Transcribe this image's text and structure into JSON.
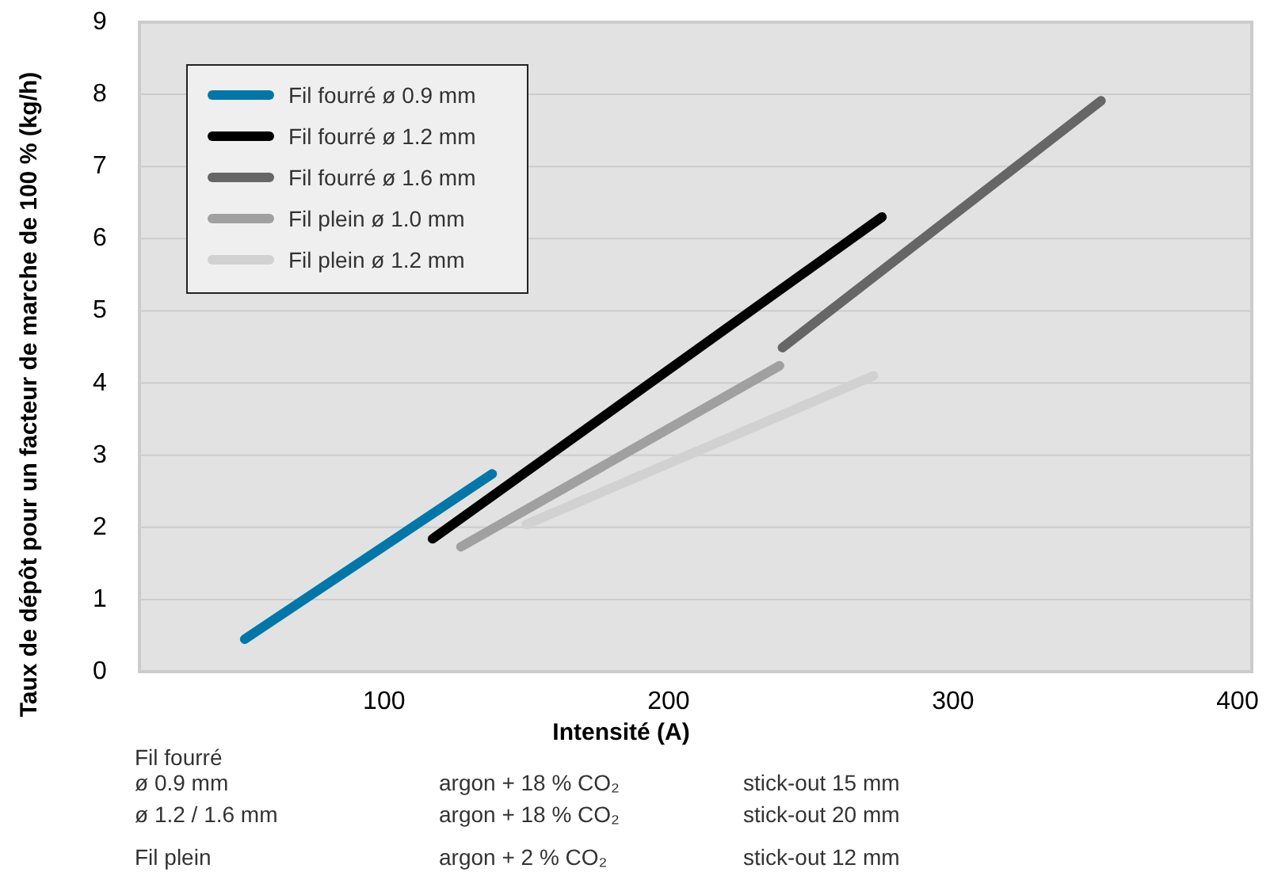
{
  "chart_data": {
    "type": "line",
    "xlabel": "Intensité (A)",
    "ylabel": "Taux de dépôt pour un facteur de marche de 100  % (kg/h)",
    "xlim": [
      14,
      405
    ],
    "xticks": [
      100,
      200,
      300,
      400
    ],
    "ylim": [
      0,
      9
    ],
    "yticks": [
      0,
      1,
      2,
      3,
      4,
      5,
      6,
      7,
      8,
      9
    ],
    "grid": "y",
    "legend": "top left",
    "line_style": "solid",
    "series": [
      {
        "name": "Fil fourré ø 0.9 mm",
        "color": "#0077a8",
        "x": [
          51,
          138
        ],
        "values": [
          0.45,
          2.74
        ]
      },
      {
        "name": "Fil fourré ø 1.2 mm",
        "color": "#000000",
        "x": [
          117,
          275
        ],
        "values": [
          1.84,
          6.3
        ]
      },
      {
        "name": "Fil fourré ø 1.6 mm",
        "color": "#666666",
        "x": [
          240,
          352
        ],
        "values": [
          4.49,
          7.91
        ]
      },
      {
        "name": "Fil plein ø 1.0 mm",
        "color": "#a0a0a0",
        "x": [
          127,
          239
        ],
        "values": [
          1.73,
          4.24
        ]
      },
      {
        "name": "Fil plein ø 1.2 mm",
        "color": "#d0d1d0",
        "x": [
          150,
          272
        ],
        "values": [
          2.04,
          4.1
        ]
      }
    ],
    "annotations": [
      "Fil fourré",
      "ø 0.9 mm",
      "argon + 18 % CO₂",
      "stick-out 15 mm",
      "ø 1.2 / 1.6 mm",
      "argon + 18 % CO₂",
      "stick-out 20 mm",
      "Fil plein",
      "argon + 2 % CO₂",
      "stick-out 12 mm"
    ]
  }
}
